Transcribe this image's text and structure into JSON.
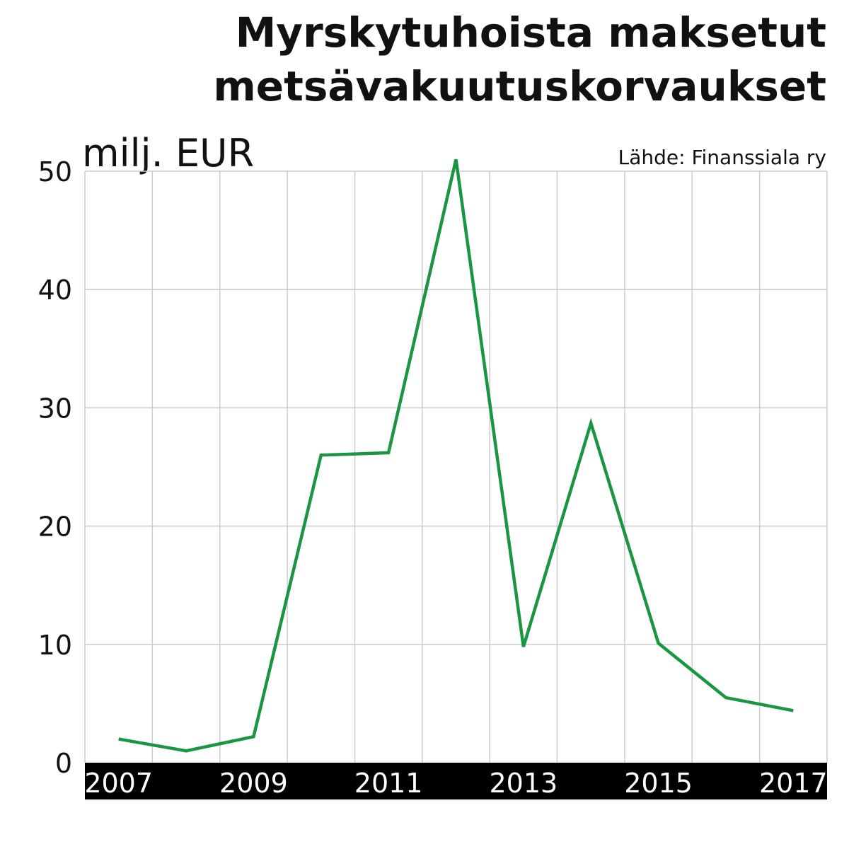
{
  "chart_data": {
    "type": "line",
    "title_lines": [
      "Myrskytuhoista maksetut",
      "metsävakuutuskorvaukset"
    ],
    "ylabel": "milj. EUR",
    "source": "Lähde: Finanssiala ry",
    "x": [
      2007,
      2008,
      2009,
      2010,
      2011,
      2012,
      2013,
      2014,
      2015,
      2016,
      2017
    ],
    "x_tick_labels": [
      "2007",
      "2009",
      "2011",
      "2013",
      "2015",
      "2017"
    ],
    "x_tick_values": [
      2007,
      2009,
      2011,
      2013,
      2015,
      2017
    ],
    "series": [
      {
        "values": [
          2.0,
          1.0,
          2.2,
          26.0,
          26.2,
          51.0,
          9.8,
          28.7,
          10.1,
          5.5,
          4.4
        ]
      }
    ],
    "y_ticks": [
      0,
      10,
      20,
      30,
      40,
      50
    ],
    "ylim": [
      0,
      50
    ],
    "xlim": [
      2006.5,
      2017.5
    ],
    "grid": true,
    "line_color": "#1a9641",
    "grid_color": "#cccccc",
    "axis_band_color": "#000000"
  }
}
